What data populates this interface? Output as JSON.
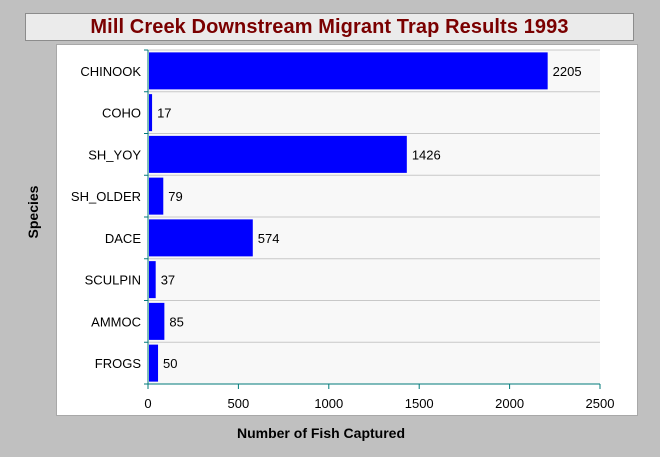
{
  "chart_data": {
    "type": "bar",
    "orientation": "horizontal",
    "title": "Mill Creek Downstream Migrant Trap Results 1993",
    "xlabel": "Number of Fish Captured",
    "ylabel": "Species",
    "categories": [
      "CHINOOK",
      "COHO",
      "SH_YOY",
      "SH_OLDER",
      "DACE",
      "SCULPIN",
      "AMMOC",
      "FROGS"
    ],
    "values": [
      2205,
      17,
      1426,
      79,
      574,
      37,
      85,
      50
    ],
    "xlim": [
      0,
      2500
    ],
    "xticks": [
      0,
      500,
      1000,
      1500,
      2000,
      2500
    ],
    "grid": true,
    "legend": "none",
    "colors": {
      "bar": "#0000ff",
      "axis": "#007a7a",
      "title": "#7a0000",
      "grid": "#c8c8c8",
      "plot_background": "#f8f8f8"
    }
  }
}
